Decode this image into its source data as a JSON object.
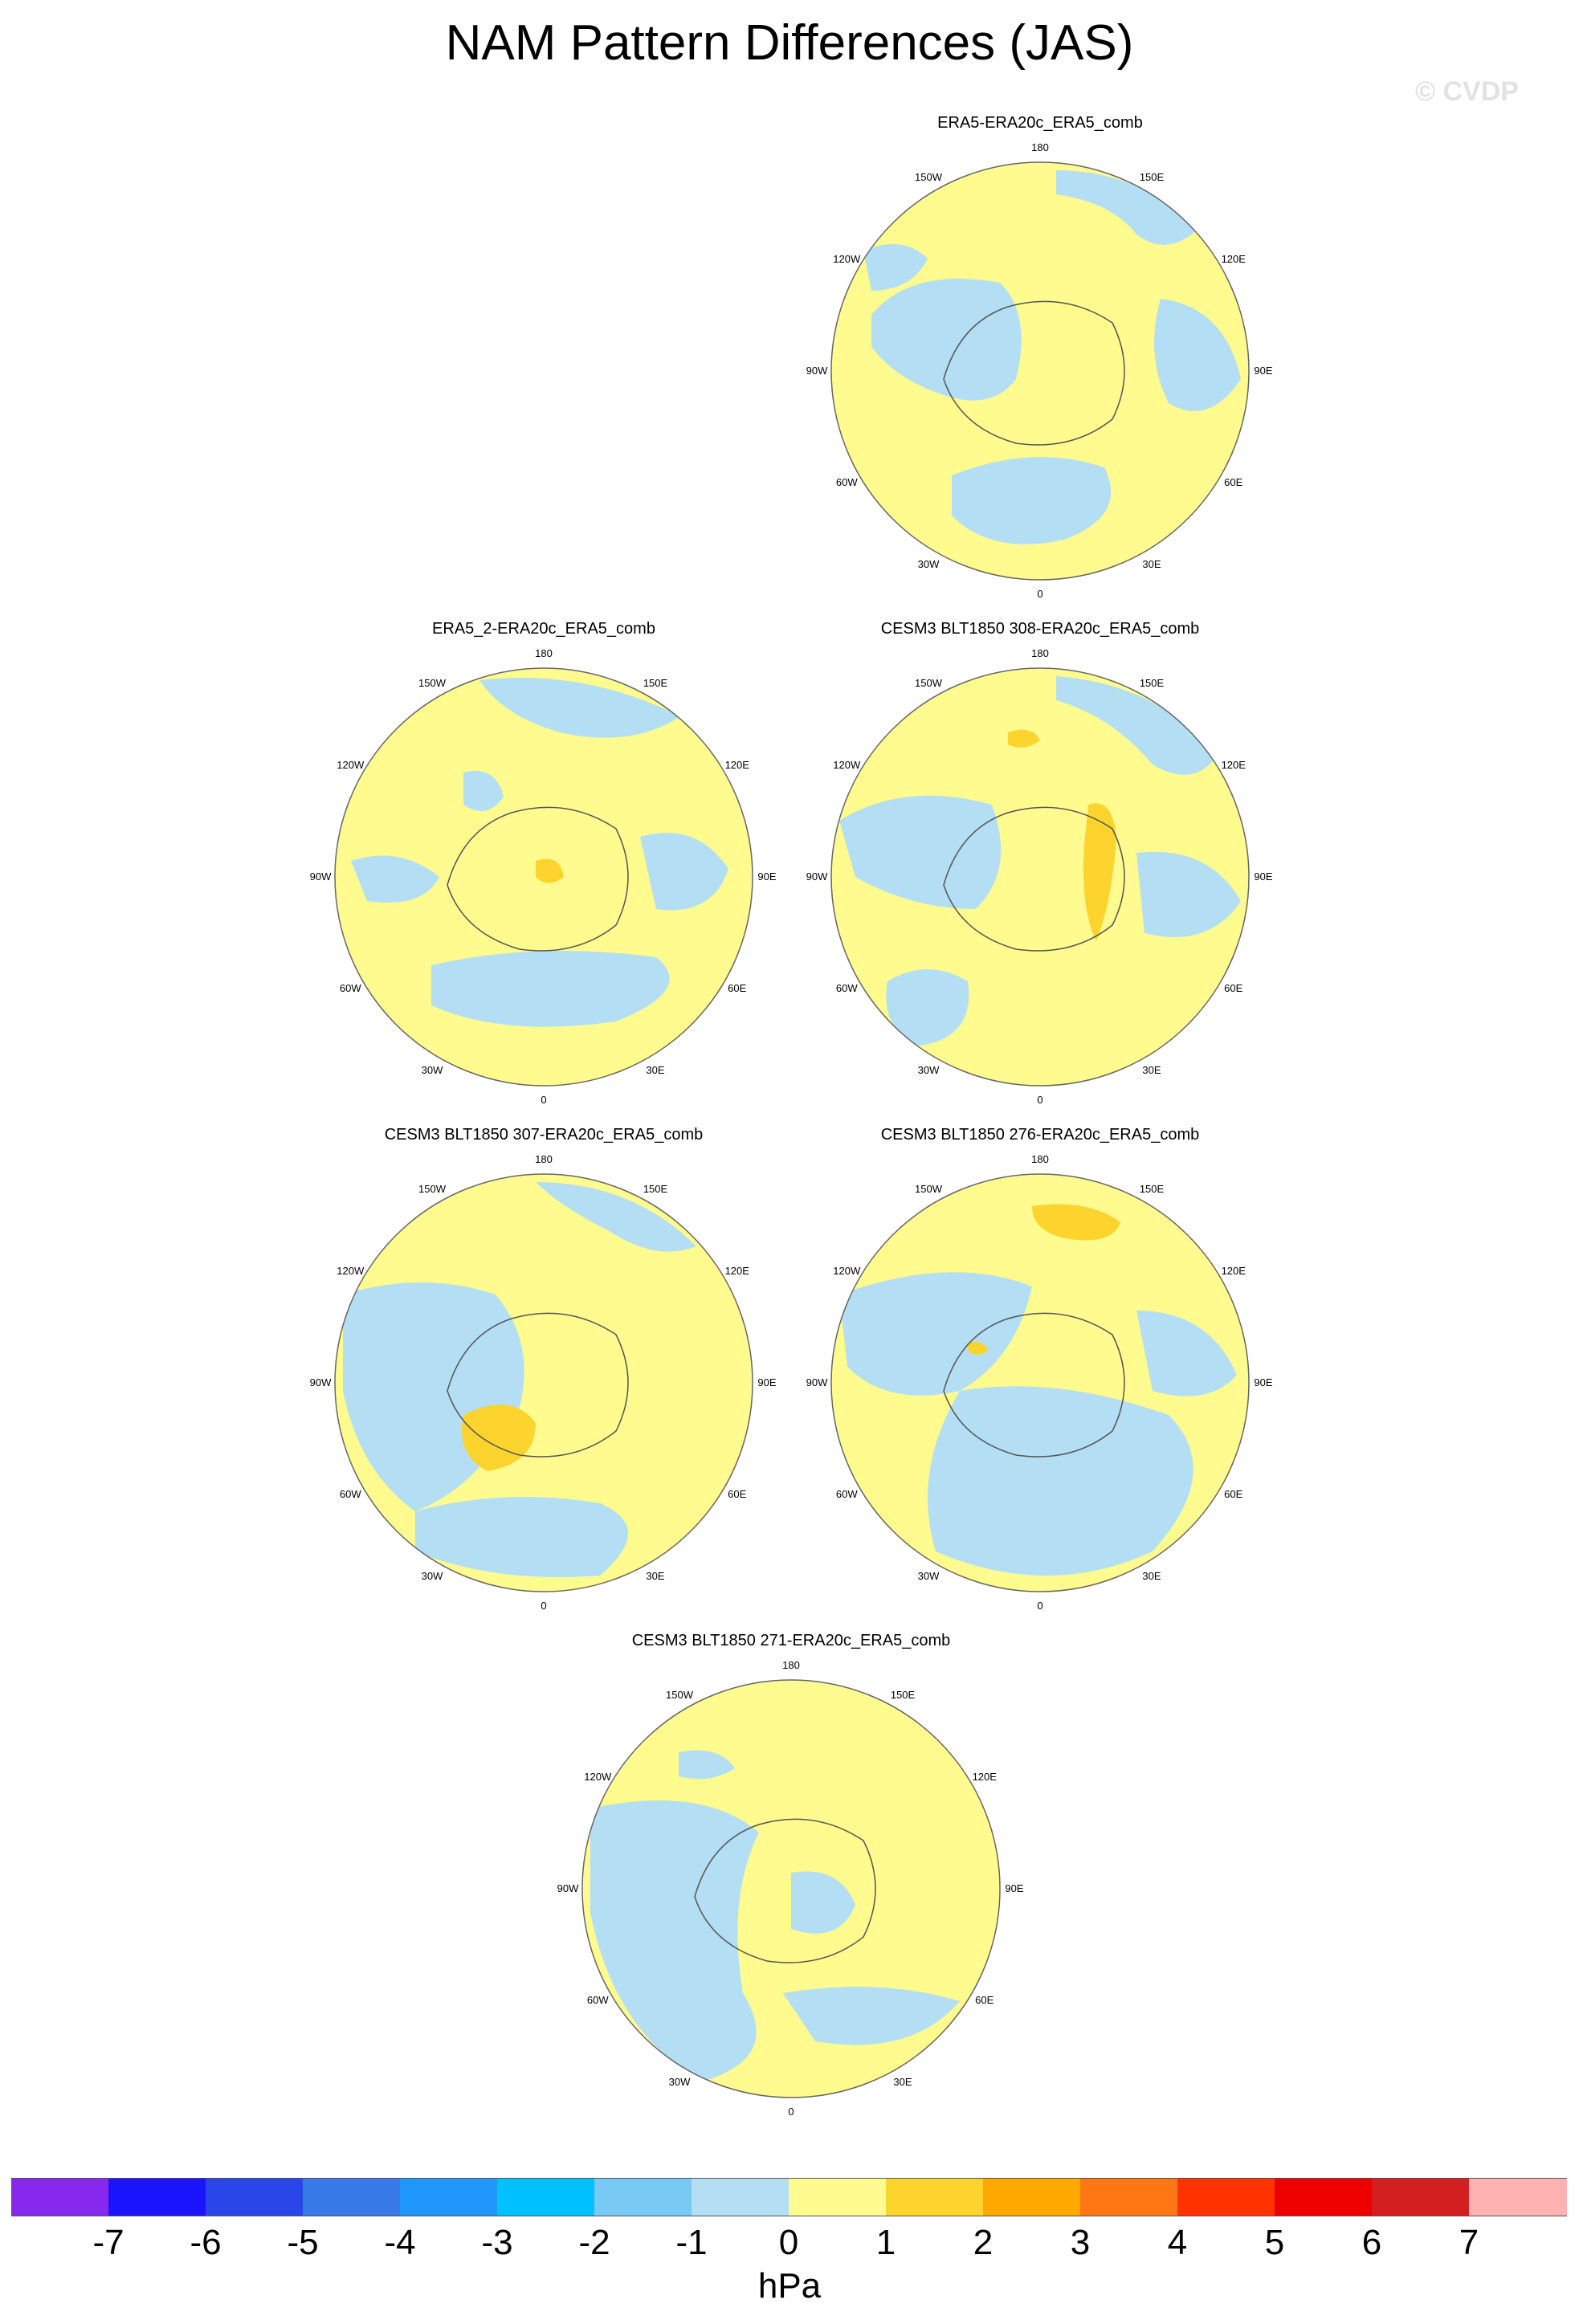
{
  "title": "NAM Pattern Differences (JAS)",
  "watermark": "© CVDP",
  "longitude_labels": [
    "180",
    "150E",
    "120E",
    "90E",
    "60E",
    "30E",
    "0",
    "30W",
    "60W",
    "90W",
    "120W",
    "150W"
  ],
  "panels": [
    {
      "title": "ERA5-ERA20c_ERA5_comb"
    },
    {
      "title": "ERA5_2-ERA20c_ERA5_comb"
    },
    {
      "title": "CESM3 BLT1850 308-ERA20c_ERA5_comb"
    },
    {
      "title": "CESM3 BLT1850 307-ERA20c_ERA5_comb"
    },
    {
      "title": "CESM3 BLT1850 276-ERA20c_ERA5_comb"
    },
    {
      "title": "CESM3 BLT1850 271-ERA20c_ERA5_comb"
    }
  ],
  "colorbar": {
    "units": "hPa",
    "labels": [
      "-7",
      "-6",
      "-5",
      "-4",
      "-3",
      "-2",
      "-1",
      "0",
      "1",
      "2",
      "3",
      "4",
      "5",
      "6",
      "7"
    ],
    "colors": [
      "#8629ec",
      "#1a14fd",
      "#2a45e8",
      "#3879e8",
      "#1f97fa",
      "#00c1ff",
      "#78c9f4",
      "#b3def4",
      "#fffb8e",
      "#fdd42e",
      "#ffa800",
      "#ff7712",
      "#ff3300",
      "#ec0000",
      "#d31f1f",
      "#ffb2b2"
    ]
  }
}
